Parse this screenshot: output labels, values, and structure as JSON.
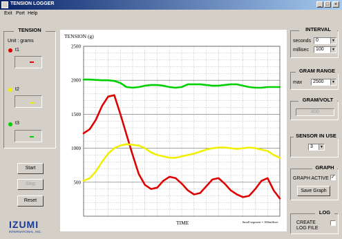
{
  "window": {
    "title": "TENSION LOGGER",
    "controls": [
      "_",
      "□",
      "×"
    ]
  },
  "menu": [
    "Exit",
    "Port",
    "Help"
  ],
  "tension": {
    "title": "TENSION",
    "unit_label": "Unit : grams",
    "sensors": [
      {
        "name": "t1",
        "color": "#e00000",
        "value": "-"
      },
      {
        "name": "t2",
        "color": "#f0f000",
        "value": "-"
      },
      {
        "name": "t3",
        "color": "#00d000",
        "value": "-"
      }
    ]
  },
  "buttons": {
    "start": "Start",
    "stop": "Stop",
    "reset": "Reset"
  },
  "logo": {
    "main": "IZUMI",
    "sub": "INTERNATIONAL, INC."
  },
  "interval": {
    "title": "INTERVAL",
    "seconds_label": "seconds",
    "seconds_value": "0",
    "millisec_label": "millisec",
    "millisec_value": "100"
  },
  "gram_range": {
    "title": "GRAM RANGE",
    "max_label": "max",
    "max_value": "2500"
  },
  "gram_volt": {
    "title": "GRAM/VOLT",
    "value": "400"
  },
  "sensor_in_use": {
    "title": "SENSOR IN USE",
    "value": "3"
  },
  "graph": {
    "title": "GRAPH",
    "active_label": "GRAPH ACTIVE",
    "active_checked": true,
    "save_label": "Save Graph"
  },
  "log": {
    "title": "LOG",
    "create_label": "CREATE LOG FILE",
    "checked": false
  },
  "chart_data": {
    "type": "line",
    "ylabel": "TENSION (g)",
    "xlabel": "TIME",
    "note": "Small segment = 100millisec",
    "ylim": [
      0,
      2500
    ],
    "yticks": [
      500,
      1000,
      1500,
      2000,
      2500
    ],
    "grid": true,
    "x": [
      0,
      1,
      2,
      3,
      4,
      5,
      6,
      7,
      8,
      9,
      10,
      11,
      12,
      13,
      14,
      15,
      16,
      17,
      18,
      19,
      20,
      21,
      22,
      23,
      24,
      25,
      26,
      27,
      28,
      29,
      30,
      31,
      32
    ],
    "series": [
      {
        "color": "#e00000",
        "values": [
          1220,
          1280,
          1420,
          1620,
          1760,
          1780,
          1500,
          1200,
          900,
          620,
          460,
          400,
          420,
          520,
          580,
          560,
          480,
          380,
          320,
          340,
          440,
          540,
          560,
          480,
          380,
          320,
          280,
          300,
          400,
          520,
          560,
          380,
          260
        ]
      },
      {
        "color": "#f0f000",
        "values": [
          520,
          560,
          660,
          800,
          920,
          1000,
          1040,
          1060,
          1050,
          1040,
          1000,
          940,
          900,
          880,
          860,
          860,
          880,
          900,
          920,
          950,
          980,
          1000,
          1010,
          1010,
          1000,
          990,
          1000,
          1010,
          1000,
          980,
          960,
          900,
          860
        ]
      },
      {
        "color": "#00d000",
        "values": [
          2010,
          2010,
          2005,
          2000,
          2000,
          1990,
          1960,
          1900,
          1890,
          1900,
          1920,
          1930,
          1930,
          1920,
          1900,
          1890,
          1900,
          1940,
          1940,
          1940,
          1930,
          1920,
          1920,
          1930,
          1940,
          1940,
          1920,
          1900,
          1890,
          1890,
          1900,
          1900,
          1900
        ]
      }
    ]
  }
}
